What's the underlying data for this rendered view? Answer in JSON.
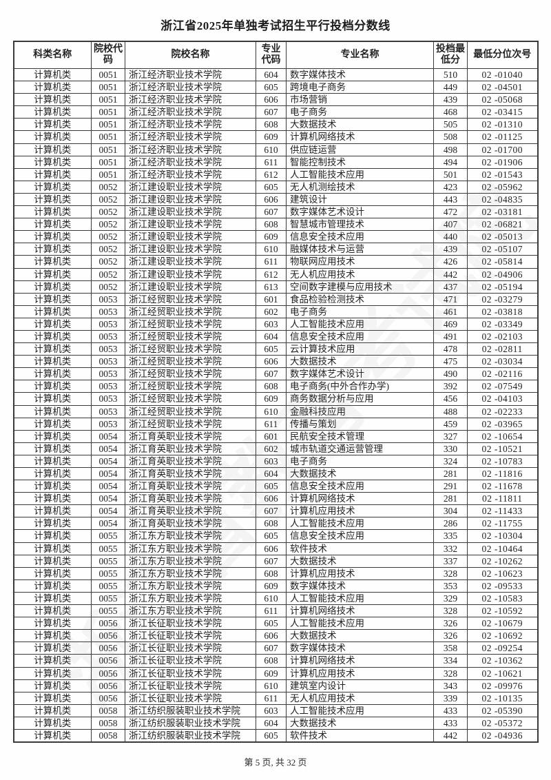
{
  "title": "浙江省2025年单独考试招生平行投档分数线",
  "watermark_text": "浙江省教育考试院",
  "footer": {
    "page_info": "第 5 页, 共 32 页"
  },
  "table": {
    "headers": [
      "科类名称",
      "院校代码",
      "院校名称",
      "专业代码",
      "专业名称",
      "投档最低分",
      "最低分位次号"
    ],
    "rows": [
      [
        "计算机类",
        "0051",
        "浙江经济职业技术学院",
        "604",
        "数字媒体技术",
        "510",
        "02 -01040"
      ],
      [
        "计算机类",
        "0051",
        "浙江经济职业技术学院",
        "605",
        "跨境电子商务",
        "449",
        "02 -04501"
      ],
      [
        "计算机类",
        "0051",
        "浙江经济职业技术学院",
        "606",
        "市场营销",
        "439",
        "02 -05068"
      ],
      [
        "计算机类",
        "0051",
        "浙江经济职业技术学院",
        "607",
        "电子商务",
        "468",
        "02 -03415"
      ],
      [
        "计算机类",
        "0051",
        "浙江经济职业技术学院",
        "608",
        "大数据技术",
        "505",
        "02 -01310"
      ],
      [
        "计算机类",
        "0051",
        "浙江经济职业技术学院",
        "609",
        "计算机网络技术",
        "508",
        "02 -01125"
      ],
      [
        "计算机类",
        "0051",
        "浙江经济职业技术学院",
        "610",
        "供应链运营",
        "498",
        "02 -01700"
      ],
      [
        "计算机类",
        "0051",
        "浙江经济职业技术学院",
        "611",
        "智能控制技术",
        "494",
        "02 -01906"
      ],
      [
        "计算机类",
        "0051",
        "浙江经济职业技术学院",
        "612",
        "人工智能技术应用",
        "501",
        "02 -01543"
      ],
      [
        "计算机类",
        "0052",
        "浙江建设职业技术学院",
        "605",
        "无人机测绘技术",
        "423",
        "02 -05962"
      ],
      [
        "计算机类",
        "0052",
        "浙江建设职业技术学院",
        "606",
        "建筑设计",
        "443",
        "02 -04835"
      ],
      [
        "计算机类",
        "0052",
        "浙江建设职业技术学院",
        "607",
        "数字媒体艺术设计",
        "472",
        "02 -03181"
      ],
      [
        "计算机类",
        "0052",
        "浙江建设职业技术学院",
        "608",
        "智慧城市管理技术",
        "407",
        "02 -06821"
      ],
      [
        "计算机类",
        "0052",
        "浙江建设职业技术学院",
        "609",
        "信息安全技术应用",
        "440",
        "02 -05013"
      ],
      [
        "计算机类",
        "0052",
        "浙江建设职业技术学院",
        "610",
        "融媒体技术与运营",
        "439",
        "02 -05107"
      ],
      [
        "计算机类",
        "0052",
        "浙江建设职业技术学院",
        "611",
        "物联网应用技术",
        "426",
        "02 -05814"
      ],
      [
        "计算机类",
        "0052",
        "浙江建设职业技术学院",
        "612",
        "无人机应用技术",
        "442",
        "02 -04906"
      ],
      [
        "计算机类",
        "0052",
        "浙江建设职业技术学院",
        "613",
        "空间数字建模与应用技术",
        "437",
        "02 -05194"
      ],
      [
        "计算机类",
        "0053",
        "浙江经贸职业技术学院",
        "601",
        "食品检验检测技术",
        "471",
        "02 -03279"
      ],
      [
        "计算机类",
        "0053",
        "浙江经贸职业技术学院",
        "602",
        "电子商务",
        "461",
        "02 -03818"
      ],
      [
        "计算机类",
        "0053",
        "浙江经贸职业技术学院",
        "603",
        "人工智能技术应用",
        "469",
        "02 -03349"
      ],
      [
        "计算机类",
        "0053",
        "浙江经贸职业技术学院",
        "604",
        "信息安全技术应用",
        "491",
        "02 -02103"
      ],
      [
        "计算机类",
        "0053",
        "浙江经贸职业技术学院",
        "605",
        "云计算技术应用",
        "478",
        "02 -02811"
      ],
      [
        "计算机类",
        "0053",
        "浙江经贸职业技术学院",
        "606",
        "大数据技术",
        "475",
        "02 -03034"
      ],
      [
        "计算机类",
        "0053",
        "浙江经贸职业技术学院",
        "607",
        "数字媒体艺术设计",
        "490",
        "02 -02116"
      ],
      [
        "计算机类",
        "0053",
        "浙江经贸职业技术学院",
        "608",
        "电子商务(中外合作办学)",
        "392",
        "02 -07549"
      ],
      [
        "计算机类",
        "0053",
        "浙江经贸职业技术学院",
        "609",
        "商务数据分析与应用",
        "456",
        "02 -04103"
      ],
      [
        "计算机类",
        "0053",
        "浙江经贸职业技术学院",
        "610",
        "金融科技应用",
        "488",
        "02 -02233"
      ],
      [
        "计算机类",
        "0053",
        "浙江经贸职业技术学院",
        "611",
        "传播与策划",
        "459",
        "02 -03965"
      ],
      [
        "计算机类",
        "0054",
        "浙江育英职业技术学院",
        "601",
        "民航安全技术管理",
        "327",
        "02 -10654"
      ],
      [
        "计算机类",
        "0054",
        "浙江育英职业技术学院",
        "602",
        "城市轨道交通运营管理",
        "330",
        "02 -10521"
      ],
      [
        "计算机类",
        "0054",
        "浙江育英职业技术学院",
        "603",
        "电子商务",
        "324",
        "02 -10783"
      ],
      [
        "计算机类",
        "0054",
        "浙江育英职业技术学院",
        "604",
        "大数据技术",
        "281",
        "02 -11816"
      ],
      [
        "计算机类",
        "0054",
        "浙江育英职业技术学院",
        "605",
        "信息安全技术应用",
        "291",
        "02 -11678"
      ],
      [
        "计算机类",
        "0054",
        "浙江育英职业技术学院",
        "606",
        "计算机网络技术",
        "281",
        "02 -11811"
      ],
      [
        "计算机类",
        "0054",
        "浙江育英职业技术学院",
        "607",
        "计算机应用技术",
        "304",
        "02 -11433"
      ],
      [
        "计算机类",
        "0054",
        "浙江育英职业技术学院",
        "608",
        "人工智能技术应用",
        "286",
        "02 -11755"
      ],
      [
        "计算机类",
        "0055",
        "浙江东方职业技术学院",
        "605",
        "信息安全技术应用",
        "335",
        "02 -10304"
      ],
      [
        "计算机类",
        "0055",
        "浙江东方职业技术学院",
        "606",
        "软件技术",
        "332",
        "02 -10464"
      ],
      [
        "计算机类",
        "0055",
        "浙江东方职业技术学院",
        "607",
        "大数据技术",
        "337",
        "02 -10262"
      ],
      [
        "计算机类",
        "0055",
        "浙江东方职业技术学院",
        "608",
        "计算机应用技术",
        "328",
        "02 -10623"
      ],
      [
        "计算机类",
        "0055",
        "浙江东方职业技术学院",
        "609",
        "数字媒体技术",
        "353",
        "02 -09533"
      ],
      [
        "计算机类",
        "0055",
        "浙江东方职业技术学院",
        "610",
        "人工智能技术应用",
        "329",
        "02 -10583"
      ],
      [
        "计算机类",
        "0055",
        "浙江东方职业技术学院",
        "611",
        "计算机网络技术",
        "328",
        "02 -10592"
      ],
      [
        "计算机类",
        "0056",
        "浙江长征职业技术学院",
        "605",
        "人工智能技术应用",
        "326",
        "02 -10679"
      ],
      [
        "计算机类",
        "0056",
        "浙江长征职业技术学院",
        "606",
        "大数据技术",
        "326",
        "02 -10692"
      ],
      [
        "计算机类",
        "0056",
        "浙江长征职业技术学院",
        "607",
        "数字媒体技术",
        "358",
        "02 -09254"
      ],
      [
        "计算机类",
        "0056",
        "浙江长征职业技术学院",
        "608",
        "计算机网络技术",
        "334",
        "02 -10362"
      ],
      [
        "计算机类",
        "0056",
        "浙江长征职业技术学院",
        "609",
        "计算机应用技术",
        "328",
        "02 -10621"
      ],
      [
        "计算机类",
        "0056",
        "浙江长征职业技术学院",
        "610",
        "建筑室内设计",
        "343",
        "02 -09976"
      ],
      [
        "计算机类",
        "0056",
        "浙江长征职业技术学院",
        "611",
        "无人机应用技术",
        "339",
        "02 -10135"
      ],
      [
        "计算机类",
        "0058",
        "浙江纺织服装职业技术学院",
        "603",
        "人工智能技术应用",
        "433",
        "02 -05390"
      ],
      [
        "计算机类",
        "0058",
        "浙江纺织服装职业技术学院",
        "604",
        "大数据技术",
        "433",
        "02 -05372"
      ],
      [
        "计算机类",
        "0058",
        "浙江纺织服装职业技术学院",
        "605",
        "软件技术",
        "442",
        "02 -04936"
      ]
    ]
  }
}
